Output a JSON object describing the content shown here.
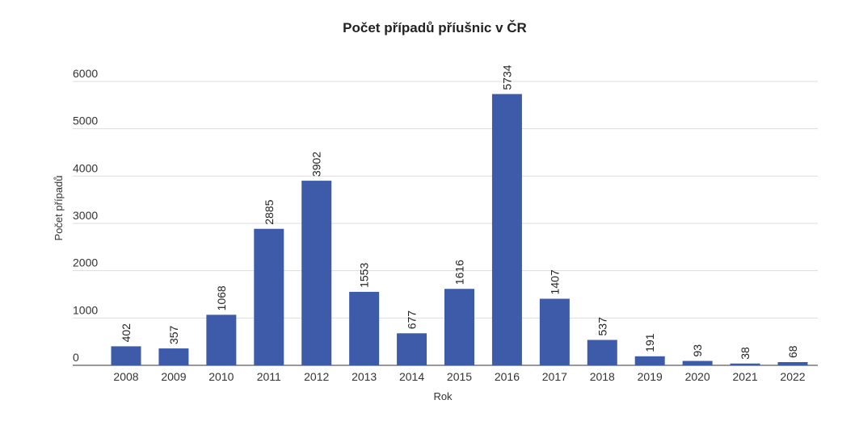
{
  "chart_data": {
    "type": "bar",
    "title": "Počet případů příušnic v ČR",
    "xlabel": "Rok",
    "ylabel": "Počet případů",
    "categories": [
      "2008",
      "2009",
      "2010",
      "2011",
      "2012",
      "2013",
      "2014",
      "2015",
      "2016",
      "2017",
      "2018",
      "2019",
      "2020",
      "2021",
      "2022"
    ],
    "values": [
      402,
      357,
      1068,
      2885,
      3902,
      1553,
      677,
      1616,
      5734,
      1407,
      537,
      191,
      93,
      38,
      68
    ],
    "yticks": [
      0,
      1000,
      2000,
      3000,
      4000,
      5000,
      6000
    ],
    "ylim": [
      0,
      6000
    ],
    "grid": true,
    "bar_color": "#3d5ba9",
    "data_labels_rotated": true
  }
}
